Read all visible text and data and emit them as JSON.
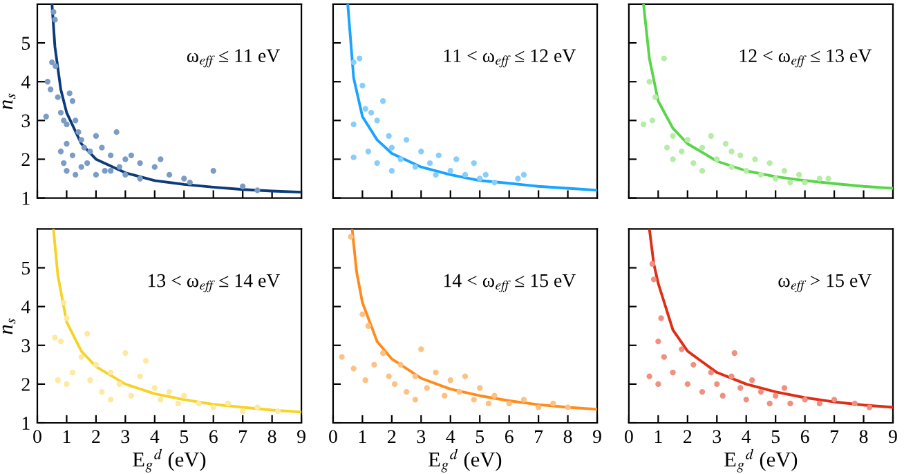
{
  "chart_data": [
    {
      "type": "scatter",
      "annotations": [
        "ω$_{eff}$ ≤ 11 eV"
      ],
      "ylabel": "n$_{s}$",
      "xlim": [
        0,
        9
      ],
      "ylim": [
        1,
        6
      ],
      "xticks": [
        0,
        1,
        2,
        3,
        4,
        5,
        6,
        7,
        8,
        9
      ],
      "yticks": [
        1,
        2,
        3,
        4,
        5
      ],
      "tick_labels": "y",
      "series": [
        {
          "marker": "circle",
          "color": "#7b9cc4",
          "x": [
            0.55,
            0.6,
            0.5,
            0.62,
            0.35,
            0.45,
            0.3,
            0.7,
            0.8,
            0.9,
            1.0,
            1.1,
            1.2,
            1.3,
            1.4,
            0.8,
            1.0,
            1.2,
            1.5,
            1.6,
            1.8,
            2.0,
            2.2,
            2.5,
            2.7,
            3.0,
            3.2,
            3.5,
            1.0,
            1.5,
            2.0,
            2.5,
            3.0,
            3.5,
            4.0,
            4.5,
            4.2,
            5.0,
            5.2,
            6.0,
            7.0,
            7.5,
            0.9,
            1.3,
            1.7,
            2.3,
            2.8
          ],
          "values": [
            5.8,
            5.6,
            4.5,
            4.4,
            4.0,
            3.8,
            3.1,
            3.6,
            3.2,
            3.0,
            2.9,
            3.7,
            3.5,
            3.0,
            2.7,
            2.2,
            2.4,
            2.1,
            2.5,
            2.3,
            2.2,
            2.6,
            2.3,
            2.1,
            2.7,
            2.0,
            2.1,
            1.9,
            1.7,
            1.8,
            1.6,
            1.7,
            1.6,
            1.5,
            1.8,
            1.6,
            2.0,
            1.5,
            1.4,
            1.7,
            1.3,
            1.2,
            1.9,
            1.6,
            1.9,
            1.7,
            1.8
          ]
        },
        {
          "type": "line",
          "color": "#0d3b7a",
          "x": [
            0.5,
            0.6,
            0.8,
            1,
            1.5,
            2,
            3,
            4,
            5,
            6,
            7,
            8,
            9
          ],
          "values": [
            6.0,
            4.9,
            3.8,
            3.2,
            2.4,
            2.0,
            1.65,
            1.45,
            1.35,
            1.28,
            1.22,
            1.18,
            1.15
          ]
        }
      ]
    },
    {
      "type": "scatter",
      "annotations": [
        "11 < ω$_{eff}$ ≤ 12 eV"
      ],
      "xlim": [
        0,
        9
      ],
      "ylim": [
        1,
        6
      ],
      "xticks": [
        0,
        1,
        2,
        3,
        4,
        5,
        6,
        7,
        8,
        9
      ],
      "yticks": [
        1,
        2,
        3,
        4,
        5
      ],
      "tick_labels": false,
      "series": [
        {
          "marker": "circle",
          "color": "#87cefa",
          "x": [
            0.7,
            0.9,
            1.0,
            0.7,
            0.7,
            1.1,
            1.3,
            1.7,
            1.5,
            1.9,
            1.2,
            1.5,
            2.0,
            2.3,
            2.5,
            2.8,
            3.0,
            3.3,
            3.6,
            4.0,
            4.2,
            4.5,
            4.8,
            5.0,
            5.2,
            5.5,
            6.3,
            6.5,
            3.5,
            2.0
          ],
          "values": [
            4.5,
            4.6,
            3.9,
            2.9,
            2.05,
            3.3,
            3.2,
            3.5,
            3.0,
            2.6,
            2.2,
            1.9,
            2.3,
            2.0,
            2.5,
            1.8,
            2.2,
            1.9,
            2.1,
            1.7,
            2.0,
            1.6,
            1.9,
            1.5,
            1.6,
            1.4,
            1.5,
            1.6,
            1.6,
            1.7
          ]
        },
        {
          "type": "line",
          "color": "#1aa3ff",
          "x": [
            0.5,
            0.7,
            1,
            1.5,
            2,
            3,
            4,
            5,
            6,
            7,
            8,
            9
          ],
          "values": [
            6.0,
            4.1,
            3.1,
            2.5,
            2.15,
            1.8,
            1.6,
            1.45,
            1.38,
            1.3,
            1.25,
            1.2
          ]
        }
      ]
    },
    {
      "type": "scatter",
      "annotations": [
        "12 < ω$_{eff}$ ≤ 13 eV"
      ],
      "xlim": [
        0,
        9
      ],
      "ylim": [
        1,
        6
      ],
      "xticks": [
        0,
        1,
        2,
        3,
        4,
        5,
        6,
        7,
        8,
        9
      ],
      "yticks": [
        1,
        2,
        3,
        4,
        5
      ],
      "tick_labels": false,
      "series": [
        {
          "marker": "circle",
          "color": "#b6eca6",
          "x": [
            0.5,
            0.7,
            0.9,
            1.2,
            0.8,
            1.3,
            1.5,
            1.8,
            2.0,
            2.2,
            2.5,
            2.8,
            3.0,
            3.3,
            3.5,
            3.8,
            4.0,
            4.3,
            4.5,
            4.8,
            5.0,
            5.3,
            5.5,
            5.8,
            6.0,
            6.5,
            2.5,
            1.5,
            3.5,
            6.8
          ],
          "values": [
            2.9,
            4.0,
            3.6,
            4.6,
            3.0,
            2.3,
            2.6,
            2.2,
            2.5,
            1.9,
            2.3,
            2.6,
            2.0,
            2.4,
            1.8,
            2.1,
            1.7,
            2.0,
            1.6,
            1.9,
            1.5,
            1.7,
            1.4,
            1.6,
            1.4,
            1.5,
            1.7,
            2.0,
            2.2,
            1.5
          ]
        },
        {
          "type": "line",
          "color": "#5ad44a",
          "x": [
            0.5,
            0.7,
            1,
            1.5,
            2,
            3,
            4,
            5,
            6,
            7,
            8,
            9
          ],
          "values": [
            6.0,
            4.6,
            3.5,
            2.8,
            2.4,
            1.95,
            1.7,
            1.55,
            1.45,
            1.37,
            1.3,
            1.25
          ]
        }
      ]
    },
    {
      "type": "scatter",
      "annotations": [
        "13 < ω$_{eff}$ ≤ 14 eV"
      ],
      "xlabel": "E$_{g}$$^{d}$ (eV)",
      "ylabel": "n$_{s}$",
      "xlim": [
        0,
        9
      ],
      "ylim": [
        1,
        6
      ],
      "xticks": [
        0,
        1,
        2,
        3,
        4,
        5,
        6,
        7,
        8,
        9
      ],
      "yticks": [
        1,
        2,
        3,
        4,
        5
      ],
      "series": [
        {
          "marker": "circle",
          "color": "#fde9a0",
          "x": [
            0.6,
            0.7,
            0.9,
            1.0,
            0.8,
            1.0,
            1.2,
            1.5,
            1.7,
            1.8,
            2.0,
            2.2,
            2.5,
            2.8,
            3.0,
            3.2,
            3.5,
            3.7,
            4.0,
            4.2,
            4.5,
            4.8,
            5.0,
            5.5,
            6.0,
            6.5,
            7.0,
            7.5,
            8.2,
            2.5
          ],
          "values": [
            3.2,
            2.1,
            4.1,
            3.7,
            3.1,
            2.0,
            2.3,
            2.7,
            3.3,
            2.1,
            2.5,
            1.8,
            2.3,
            2.0,
            2.8,
            1.7,
            2.2,
            2.6,
            1.9,
            1.6,
            1.8,
            1.5,
            1.7,
            1.5,
            1.4,
            1.5,
            1.3,
            1.4,
            1.3,
            1.6
          ]
        },
        {
          "type": "line",
          "color": "#f5d327",
          "x": [
            0.55,
            0.7,
            1,
            1.5,
            2,
            3,
            4,
            5,
            6,
            7,
            8,
            9
          ],
          "values": [
            6.0,
            4.8,
            3.6,
            2.85,
            2.45,
            2.0,
            1.75,
            1.6,
            1.48,
            1.4,
            1.33,
            1.28
          ]
        }
      ]
    },
    {
      "type": "scatter",
      "annotations": [
        "14 < ω$_{eff}$ ≤ 15 eV"
      ],
      "xlabel": "E$_{g}$$^{d}$ (eV)",
      "xlim": [
        0,
        9
      ],
      "ylim": [
        1,
        6
      ],
      "xticks": [
        0,
        1,
        2,
        3,
        4,
        5,
        6,
        7,
        8,
        9
      ],
      "yticks": [
        1,
        2,
        3,
        4,
        5
      ],
      "tick_labels": "x",
      "series": [
        {
          "marker": "circle",
          "color": "#fdc184",
          "x": [
            0.3,
            0.6,
            0.7,
            1.0,
            1.2,
            1.1,
            1.4,
            1.7,
            1.9,
            2.1,
            2.3,
            2.5,
            2.8,
            3.0,
            3.2,
            3.5,
            3.8,
            4.0,
            4.3,
            4.5,
            4.8,
            5.0,
            5.3,
            5.5,
            6.0,
            6.5,
            7.0,
            7.5,
            8.0,
            2.8
          ],
          "values": [
            2.7,
            5.8,
            2.4,
            3.8,
            3.5,
            2.1,
            2.5,
            2.8,
            2.2,
            2.0,
            2.5,
            1.8,
            2.2,
            2.9,
            1.9,
            2.3,
            1.7,
            2.1,
            1.8,
            2.2,
            1.6,
            1.9,
            1.5,
            1.7,
            1.5,
            1.6,
            1.4,
            1.5,
            1.4,
            1.6
          ]
        },
        {
          "type": "line",
          "color": "#ff8c1a",
          "x": [
            0.65,
            0.8,
            1,
            1.5,
            2,
            3,
            4,
            5,
            6,
            7,
            8,
            9
          ],
          "values": [
            6.0,
            4.9,
            4.1,
            3.1,
            2.65,
            2.15,
            1.87,
            1.7,
            1.57,
            1.47,
            1.4,
            1.35
          ]
        }
      ]
    },
    {
      "type": "scatter",
      "annotations": [
        "ω$_{eff}$ > 15 eV"
      ],
      "xlabel": "E$_{g}$$^{d}$ (eV)",
      "xlim": [
        0,
        9
      ],
      "ylim": [
        1,
        6
      ],
      "xticks": [
        0,
        1,
        2,
        3,
        4,
        5,
        6,
        7,
        8,
        9
      ],
      "yticks": [
        1,
        2,
        3,
        4,
        5
      ],
      "tick_labels": "x",
      "series": [
        {
          "marker": "circle",
          "color": "#f09080",
          "x": [
            0.7,
            0.8,
            0.85,
            1.1,
            1.0,
            1.2,
            1.0,
            1.5,
            1.8,
            2.0,
            2.2,
            2.5,
            2.8,
            3.0,
            3.2,
            3.5,
            3.6,
            3.8,
            4.0,
            4.2,
            4.5,
            4.8,
            5.0,
            5.3,
            5.5,
            6.0,
            6.5,
            7.0,
            7.7,
            8.2
          ],
          "values": [
            2.2,
            5.1,
            4.7,
            3.7,
            3.1,
            2.7,
            2.0,
            2.3,
            2.9,
            2.0,
            2.5,
            1.8,
            2.3,
            2.0,
            1.7,
            2.2,
            2.8,
            1.9,
            1.6,
            2.1,
            1.8,
            1.5,
            1.7,
            1.9,
            1.5,
            1.6,
            1.5,
            1.6,
            1.5,
            1.4
          ]
        },
        {
          "type": "line",
          "color": "#e02d14",
          "x": [
            0.7,
            0.85,
            1,
            1.5,
            2,
            3,
            4,
            5,
            6,
            7,
            8,
            9
          ],
          "values": [
            6.0,
            5.1,
            4.6,
            3.4,
            2.85,
            2.3,
            2.0,
            1.8,
            1.65,
            1.54,
            1.46,
            1.4
          ]
        }
      ]
    }
  ]
}
